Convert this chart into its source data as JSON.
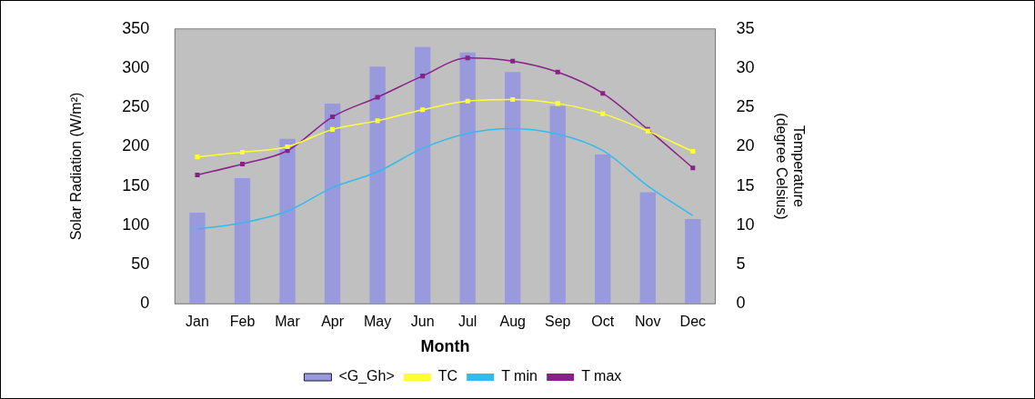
{
  "chart_data": {
    "type": "bar",
    "xlabel": "Month",
    "ylabel": "Solar Radiation (W/m²)",
    "y2label": "Temperature\n(degree Celsius)",
    "categories": [
      "Jan",
      "Feb",
      "Mar",
      "Apr",
      "May",
      "Jun",
      "Jul",
      "Aug",
      "Sep",
      "Oct",
      "Nov",
      "Dec"
    ],
    "series": [
      {
        "name": "<G_Gh>",
        "color": "#9999dd",
        "values": [
          116,
          160,
          210,
          255,
          302,
          327,
          320,
          295,
          252,
          190,
          142,
          108
        ]
      },
      {
        "name": "TC",
        "type": "line",
        "axis": "y2",
        "color": "#ffff33",
        "marker": "square",
        "values": [
          18.7,
          19.3,
          20,
          22.2,
          23.3,
          24.7,
          25.8,
          26,
          25.5,
          24.2,
          22,
          19.4
        ]
      },
      {
        "name": "T min",
        "type": "line",
        "axis": "y2",
        "color": "#33bbee",
        "marker": "none",
        "values": [
          9.5,
          10.3,
          11.8,
          14.8,
          16.8,
          19.8,
          21.7,
          22.3,
          21.6,
          19.5,
          15,
          11.2
        ]
      },
      {
        "name": "T max",
        "type": "line",
        "axis": "y2",
        "color": "#882288",
        "marker": "square",
        "values": [
          16.4,
          17.8,
          19.5,
          23.8,
          26.3,
          29,
          31.3,
          30.9,
          29.5,
          26.8,
          22.2,
          17.3
        ]
      }
    ],
    "ylim": [
      0,
      350
    ],
    "yticks": [
      0,
      50,
      100,
      150,
      200,
      250,
      300,
      350
    ],
    "y2lim": [
      0,
      35
    ],
    "y2ticks": [
      0,
      5,
      10,
      15,
      20,
      25,
      30,
      35
    ],
    "grid": false,
    "legend": "bottom"
  }
}
